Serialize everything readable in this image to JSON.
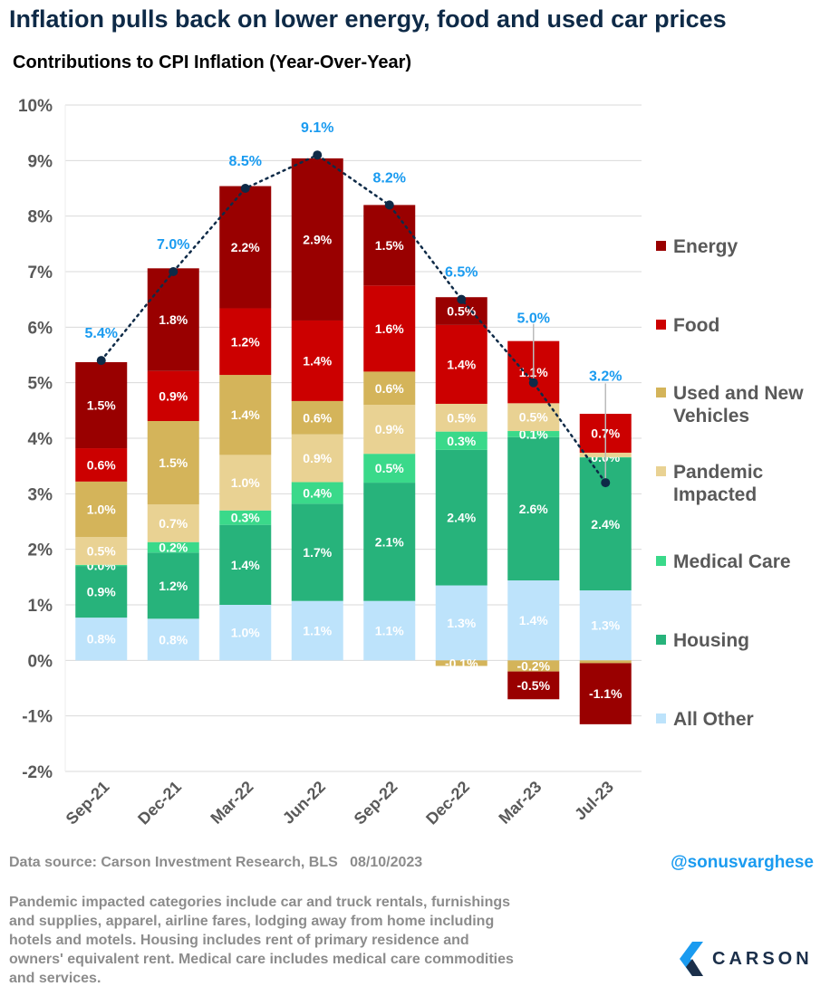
{
  "title": "Inflation pulls back on lower energy, food and used car prices",
  "chart_data": {
    "type": "bar",
    "stacked": true,
    "title": "Contributions to CPI Inflation (Year-Over-Year)",
    "ylim": [
      -2,
      10
    ],
    "yticks": [
      "-2%",
      "-1%",
      "0%",
      "1%",
      "2%",
      "3%",
      "4%",
      "5%",
      "6%",
      "7%",
      "8%",
      "9%",
      "10%"
    ],
    "grid": true,
    "legend_position": "right",
    "categories": [
      "Sep-21",
      "Dec-21",
      "Mar-22",
      "Jun-22",
      "Sep-22",
      "Dec-22",
      "Mar-23",
      "Jul-23"
    ],
    "series": [
      {
        "name": "All Other",
        "color": "#bde3fb",
        "values": [
          0.77,
          0.75,
          1.0,
          1.07,
          1.07,
          1.35,
          1.44,
          1.26
        ],
        "labels": [
          "0.8%",
          "0.8%",
          "1.0%",
          "1.1%",
          "1.1%",
          "1.3%",
          "1.4%",
          "1.3%"
        ]
      },
      {
        "name": "Housing",
        "color": "#27b37b",
        "values": [
          0.93,
          1.19,
          1.44,
          1.75,
          2.13,
          2.44,
          2.58,
          2.39
        ],
        "labels": [
          "0.9%",
          "1.2%",
          "1.4%",
          "1.7%",
          "2.1%",
          "2.4%",
          "2.6%",
          "2.4%"
        ]
      },
      {
        "name": "Medical Care",
        "color": "#3ad98a",
        "values": [
          0.02,
          0.19,
          0.26,
          0.39,
          0.52,
          0.33,
          0.11,
          0.01
        ],
        "labels": [
          "0.0%",
          "0.2%",
          "0.3%",
          "0.4%",
          "0.5%",
          "0.3%",
          "0.1%",
          "0.0%"
        ]
      },
      {
        "name": "Pandemic Impacted",
        "color": "#e9d293",
        "values": [
          0.5,
          0.68,
          1.0,
          0.86,
          0.88,
          0.5,
          0.5,
          0.08
        ],
        "labels": [
          "0.5%",
          "0.7%",
          "1.0%",
          "0.9%",
          "0.9%",
          "0.5%",
          "0.5%",
          ""
        ]
      },
      {
        "name": "Used and New Vehicles",
        "color": "#d4b45a",
        "values": [
          1.0,
          1.5,
          1.44,
          0.6,
          0.6,
          -0.1,
          -0.2,
          -0.05
        ],
        "labels": [
          "1.0%",
          "1.5%",
          "1.4%",
          "0.6%",
          "0.6%",
          "-0.1%",
          "-0.2%",
          ""
        ]
      },
      {
        "name": "Food",
        "color": "#cc0000",
        "values": [
          0.6,
          0.9,
          1.2,
          1.45,
          1.55,
          1.42,
          1.12,
          0.7
        ],
        "labels": [
          "0.6%",
          "0.9%",
          "1.2%",
          "1.4%",
          "1.6%",
          "1.4%",
          "1.1%",
          "0.7%"
        ]
      },
      {
        "name": "Energy",
        "color": "#990000",
        "values": [
          1.55,
          1.85,
          2.2,
          2.92,
          1.45,
          0.5,
          -0.5,
          -1.1
        ],
        "labels": [
          "1.5%",
          "1.8%",
          "2.2%",
          "2.9%",
          "1.5%",
          "0.5%",
          "-0.5%",
          "-1.1%"
        ]
      }
    ],
    "totals": {
      "name": "CPI",
      "color": "#1a9bf0",
      "values": [
        5.4,
        7.0,
        8.5,
        9.1,
        8.2,
        6.5,
        5.0,
        3.2
      ],
      "labels": [
        "5.4%",
        "7.0%",
        "8.5%",
        "9.1%",
        "8.2%",
        "6.5%",
        "5.0%",
        "3.2%"
      ]
    }
  },
  "footer": {
    "source": "Data source: Carson Investment Research, BLS   08/10/2023",
    "handle": "@sonusvarghese",
    "note": "Pandemic impacted categories include car and truck rentals, furnishings and supplies, apparel, airline fares, lodging away from home including hotels and motels. Housing includes rent of primary residence and owners' equivalent rent. Medical care includes medical care commodities and services.",
    "logo": "CARSON"
  }
}
